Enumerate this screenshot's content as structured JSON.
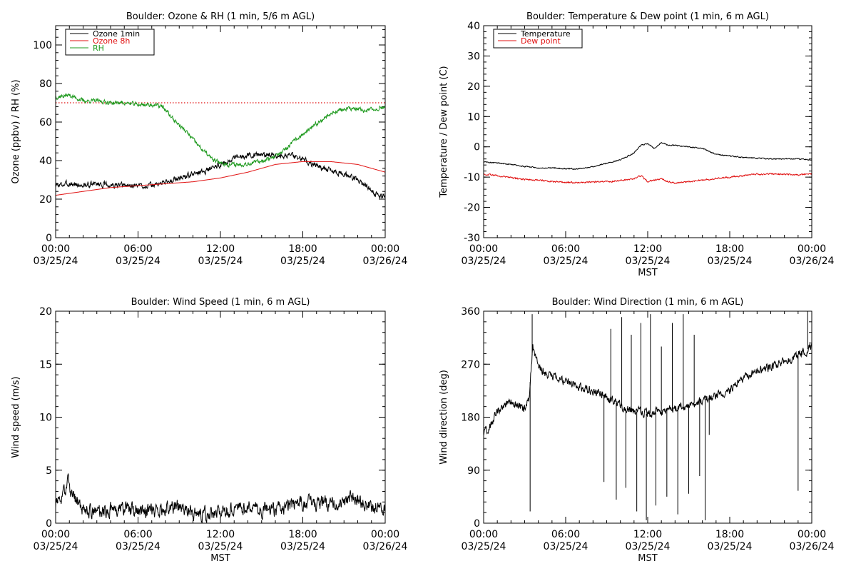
{
  "chart_data": [
    {
      "type": "line",
      "title": "Boulder: Ozone & RH (1 min, 5/6 m AGL)",
      "ylabel": "Ozone (ppbv) / RH (%)",
      "xlabel": "",
      "xlim": [
        0,
        24
      ],
      "ylim": [
        0,
        110
      ],
      "yticks": [
        0,
        20,
        40,
        60,
        80,
        100
      ],
      "xticks": [
        {
          "value": 0,
          "time": "00:00",
          "date": "03/25/24"
        },
        {
          "value": 6,
          "time": "06:00",
          "date": "03/25/24"
        },
        {
          "value": 12,
          "time": "12:00",
          "date": "03/25/24"
        },
        {
          "value": 18,
          "time": "18:00",
          "date": "03/25/24"
        },
        {
          "value": 24,
          "time": "00:00",
          "date": "03/26/24"
        }
      ],
      "legend_position": "top-left",
      "reference_line": {
        "y": 70,
        "color": "#e01010",
        "style": "dotted"
      },
      "series": [
        {
          "name": "Ozone 1min",
          "color": "#000000",
          "noise": 1.2,
          "x": [
            0,
            1,
            2,
            3,
            4,
            5,
            6,
            7,
            8,
            9,
            10,
            11,
            12,
            13,
            14,
            15,
            16,
            17,
            18,
            19,
            20,
            21,
            22,
            23,
            23.5,
            24
          ],
          "y": [
            27,
            28,
            27,
            28,
            27,
            27,
            27,
            27,
            29,
            31,
            33,
            35,
            38,
            41,
            43,
            43,
            43,
            43,
            41,
            37,
            35,
            33,
            30,
            25,
            21,
            22
          ]
        },
        {
          "name": "Ozone 8h",
          "color": "#e01010",
          "noise": 0,
          "x": [
            0,
            2,
            4,
            6,
            8,
            10,
            12,
            14,
            16,
            18,
            20,
            22,
            24
          ],
          "y": [
            22,
            24,
            26,
            27,
            28,
            29,
            31,
            34,
            38,
            39.5,
            39.5,
            38,
            34
          ]
        },
        {
          "name": "RH",
          "color": "#1f9a1f",
          "noise": 0.9,
          "x": [
            0,
            1,
            2,
            3,
            4,
            5,
            6,
            7,
            7.8,
            8.5,
            9.5,
            10.5,
            11.5,
            12.5,
            13.5,
            14.5,
            15.5,
            16.5,
            17.5,
            18.5,
            19.5,
            20.5,
            21.5,
            22.5,
            23.5,
            24
          ],
          "y": [
            73,
            74,
            71,
            71,
            70,
            70,
            69,
            69,
            68,
            62,
            55,
            47,
            40,
            38,
            38,
            39,
            41,
            44,
            51,
            56,
            62,
            66,
            67,
            66,
            67,
            68
          ]
        }
      ]
    },
    {
      "type": "line",
      "title": "Boulder: Temperature & Dew point (1 min, 6 m AGL)",
      "ylabel": "Temperature / Dew point (C)",
      "xlabel": "MST",
      "xlim": [
        0,
        24
      ],
      "ylim": [
        -30,
        40
      ],
      "yticks": [
        -30,
        -20,
        -10,
        0,
        10,
        20,
        30,
        40
      ],
      "xticks": [
        {
          "value": 0,
          "time": "00:00",
          "date": "03/25/24"
        },
        {
          "value": 6,
          "time": "06:00",
          "date": "03/25/24"
        },
        {
          "value": 12,
          "time": "12:00",
          "date": "03/25/24"
        },
        {
          "value": 18,
          "time": "18:00",
          "date": "03/25/24"
        },
        {
          "value": 24,
          "time": "00:00",
          "date": "03/26/24"
        }
      ],
      "legend_position": "top-left",
      "series": [
        {
          "name": "Temperature",
          "color": "#000000",
          "noise": 0.15,
          "x": [
            0,
            1,
            2,
            3,
            4,
            5,
            6,
            7,
            8,
            9,
            10,
            11,
            11.5,
            12,
            12.5,
            13,
            13.5,
            14,
            15,
            16,
            17,
            18,
            19,
            20,
            21,
            22,
            23,
            24
          ],
          "y": [
            -5,
            -5.3,
            -5.8,
            -6.5,
            -7,
            -7,
            -7.2,
            -7.3,
            -6.5,
            -5.5,
            -4.3,
            -2,
            0.5,
            1,
            -0.5,
            1.5,
            0.5,
            0.5,
            0,
            -0.5,
            -2.5,
            -3,
            -3.5,
            -3.8,
            -4,
            -4,
            -4,
            -4.3
          ]
        },
        {
          "name": "Dew point",
          "color": "#e01010",
          "noise": 0.2,
          "x": [
            0,
            1,
            2,
            3,
            4,
            5,
            6,
            7,
            8,
            9,
            10,
            11,
            11.5,
            12,
            12.5,
            13,
            13.5,
            14,
            15,
            16,
            17,
            18,
            19,
            20,
            21,
            22,
            23,
            24
          ],
          "y": [
            -9,
            -9.5,
            -10.2,
            -10.8,
            -11,
            -11.5,
            -11.7,
            -11.8,
            -11.6,
            -11.5,
            -11.2,
            -10.5,
            -9.5,
            -11.5,
            -11,
            -10.5,
            -11.5,
            -12,
            -11.5,
            -11,
            -10.5,
            -10,
            -9.5,
            -9,
            -9,
            -9,
            -9.3,
            -9
          ]
        }
      ]
    },
    {
      "type": "line",
      "title": "Boulder: Wind Speed (1 min, 6 m AGL)",
      "ylabel": "Wind speed (m/s)",
      "xlabel": "MST",
      "xlim": [
        0,
        24
      ],
      "ylim": [
        0,
        20
      ],
      "yticks": [
        0,
        5,
        10,
        15,
        20
      ],
      "xticks": [
        {
          "value": 0,
          "time": "00:00",
          "date": "03/25/24"
        },
        {
          "value": 6,
          "time": "06:00",
          "date": "03/25/24"
        },
        {
          "value": 12,
          "time": "12:00",
          "date": "03/25/24"
        },
        {
          "value": 18,
          "time": "18:00",
          "date": "03/25/24"
        },
        {
          "value": 24,
          "time": "00:00",
          "date": "03/26/24"
        }
      ],
      "legend_position": "none",
      "series": [
        {
          "name": "",
          "color": "#000000",
          "noise": 0.55,
          "x": [
            0,
            0.5,
            0.9,
            1.3,
            2,
            3,
            4,
            5,
            6,
            7,
            8,
            9,
            10,
            11,
            12,
            13,
            14,
            15,
            16,
            17,
            18,
            19,
            20,
            21,
            22,
            23,
            24
          ],
          "y": [
            2,
            2.5,
            3.8,
            2.5,
            1.2,
            1,
            1.3,
            1.5,
            1.3,
            1.2,
            1.5,
            1.5,
            1,
            0.8,
            1,
            1.3,
            1.5,
            1.3,
            1.2,
            1.5,
            2,
            1.8,
            1.8,
            2.2,
            2.3,
            1.5,
            1.5
          ]
        }
      ]
    },
    {
      "type": "line",
      "title": "Boulder: Wind Direction (1 min, 6 m AGL)",
      "ylabel": "Wind direction (deg)",
      "xlabel": "MST",
      "xlim": [
        0,
        24
      ],
      "ylim": [
        0,
        360
      ],
      "yticks": [
        0,
        90,
        180,
        270,
        360
      ],
      "xticks": [
        {
          "value": 0,
          "time": "00:00",
          "date": "03/25/24"
        },
        {
          "value": 6,
          "time": "06:00",
          "date": "03/25/24"
        },
        {
          "value": 12,
          "time": "12:00",
          "date": "03/25/24"
        },
        {
          "value": 18,
          "time": "18:00",
          "date": "03/25/24"
        },
        {
          "value": 24,
          "time": "00:00",
          "date": "03/26/24"
        }
      ],
      "legend_position": "none",
      "series": [
        {
          "name": "",
          "color": "#000000",
          "noise": 6,
          "x": [
            0,
            0.5,
            1,
            2,
            3,
            3.3,
            3.6,
            4,
            4.5,
            5,
            6,
            7,
            8,
            9,
            10,
            11,
            12,
            13,
            14,
            15,
            16,
            17,
            18,
            19,
            20,
            21,
            22,
            23,
            24
          ],
          "y": [
            150,
            165,
            190,
            205,
            195,
            210,
            300,
            265,
            255,
            250,
            240,
            232,
            225,
            215,
            200,
            190,
            185,
            190,
            195,
            200,
            210,
            215,
            225,
            245,
            260,
            265,
            272,
            285,
            300
          ]
        }
      ],
      "spikes": [
        {
          "x": 3.4,
          "y": 20
        },
        {
          "x": 3.55,
          "y": 355
        },
        {
          "x": 8.8,
          "y": 70
        },
        {
          "x": 9.3,
          "y": 330
        },
        {
          "x": 9.7,
          "y": 40
        },
        {
          "x": 10.1,
          "y": 350
        },
        {
          "x": 10.4,
          "y": 60
        },
        {
          "x": 10.8,
          "y": 320
        },
        {
          "x": 11.2,
          "y": 20
        },
        {
          "x": 11.5,
          "y": 340
        },
        {
          "x": 11.9,
          "y": 5
        },
        {
          "x": 12.2,
          "y": 355
        },
        {
          "x": 12.6,
          "y": 30
        },
        {
          "x": 13.0,
          "y": 300
        },
        {
          "x": 13.4,
          "y": 45
        },
        {
          "x": 13.8,
          "y": 340
        },
        {
          "x": 14.2,
          "y": 15
        },
        {
          "x": 14.6,
          "y": 355
        },
        {
          "x": 15.0,
          "y": 50
        },
        {
          "x": 15.4,
          "y": 320
        },
        {
          "x": 15.8,
          "y": 80
        },
        {
          "x": 16.2,
          "y": 5
        },
        {
          "x": 16.5,
          "y": 150
        },
        {
          "x": 23.0,
          "y": 55
        },
        {
          "x": 23.7,
          "y": 360
        }
      ]
    }
  ]
}
